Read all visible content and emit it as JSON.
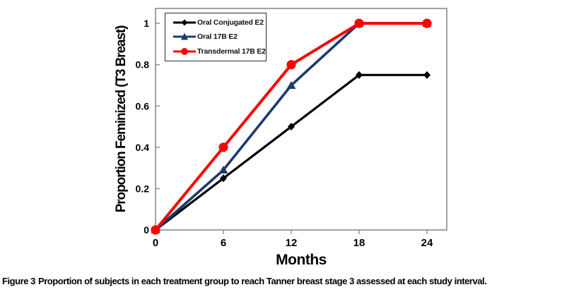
{
  "figure": {
    "caption_label": "Figure 3",
    "caption_text": "Proportion of subjects in each treatment group to reach Tanner breast stage 3 assessed at each study interval."
  },
  "chart_data": {
    "type": "line",
    "title": "",
    "xlabel": "Months",
    "ylabel": "Proportion Feminized (T3 Breast)",
    "x": [
      0,
      6,
      12,
      18,
      24
    ],
    "x_tick_labels": [
      "0",
      "6",
      "12",
      "18",
      "24"
    ],
    "y_ticks": [
      0,
      0.2,
      0.4,
      0.6,
      0.8,
      1
    ],
    "y_tick_labels": [
      "0",
      "0.2",
      "0.4",
      "0.6",
      "0.8",
      "1"
    ],
    "xlim": [
      0,
      25.75
    ],
    "ylim": [
      0,
      1.072
    ],
    "grid": false,
    "legend_position": "top-left",
    "axis_color": "#8c8c8c",
    "series": [
      {
        "name": "Oral Conjugated E2",
        "color": "#000000",
        "marker": "diamond",
        "values": [
          0,
          0.25,
          0.5,
          0.75,
          0.75
        ]
      },
      {
        "name": "Oral 17B E2",
        "color": "#1c3a6e",
        "marker": "triangle",
        "values": [
          0,
          0.29,
          0.7,
          1,
          1
        ]
      },
      {
        "name": "Transdermal 17B E2",
        "color": "#fe0000",
        "marker": "circle",
        "values": [
          0,
          0.4,
          0.8,
          1,
          1
        ]
      }
    ]
  }
}
